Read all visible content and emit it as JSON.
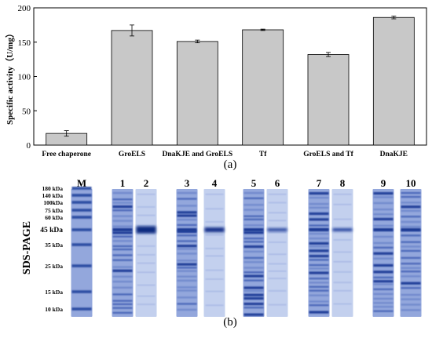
{
  "chart_data": [
    {
      "type": "bar",
      "panel_label": "(a)",
      "title": "",
      "xlabel": "",
      "ylabel": "Specific activity（U/mg）",
      "ylim": [
        0,
        200
      ],
      "yticks": [
        0,
        50,
        100,
        150,
        200
      ],
      "grid": false,
      "categories": [
        "Free chaperone",
        "GroELS",
        "DnaKJE and GroELS",
        "Tf",
        "GroELS and Tf",
        "DnaKJE"
      ],
      "values": [
        17,
        167,
        151,
        168,
        132,
        186
      ],
      "errors": [
        4,
        8,
        2,
        1,
        3,
        2
      ],
      "bar_color": "#c8c8c8"
    },
    {
      "type": "gel",
      "panel_label": "(b)",
      "ylabel": "SDS-PAGE",
      "lanes": [
        "M",
        "1",
        "2",
        "3",
        "4",
        "5",
        "6",
        "7",
        "8",
        "9",
        "10"
      ],
      "marker_kda": [
        "180 kDa",
        "140 kDa",
        "100kDa",
        "75 kDa",
        "60 kDa",
        "45 kDa",
        "35 kDa",
        "25 kDa",
        "15 kDa",
        "10 kDa"
      ],
      "marker_mw": [
        180,
        140,
        100,
        75,
        60,
        45,
        35,
        25,
        15,
        10
      ],
      "lane_type": [
        "marker",
        "lysate",
        "purified",
        "lysate",
        "purified",
        "lysate",
        "purified",
        "lysate",
        "purified",
        "lysate",
        "lysate"
      ],
      "purified_band_kda": 45,
      "gel_color": "#6d86c9"
    }
  ]
}
